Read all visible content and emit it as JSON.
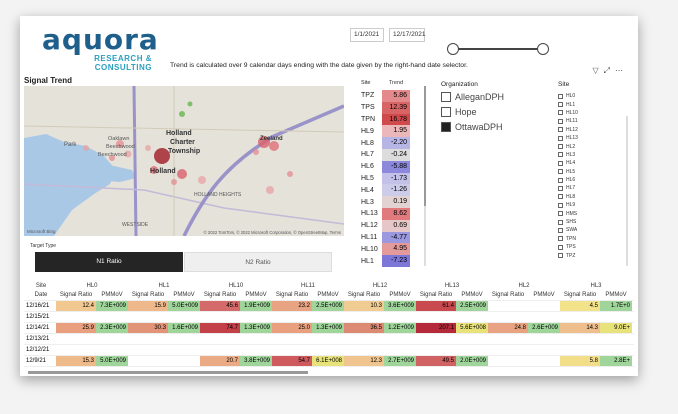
{
  "logo": {
    "main": "aquora",
    "sub1": "RESEARCH &",
    "sub2": "CONSULTING"
  },
  "date_range": {
    "start": "1/1/2021",
    "end": "12/17/2021"
  },
  "note": "Trend is calculated over 9 calendar days ending with the date given by the right-hand date selector.",
  "signal_trend_title": "Signal Trend",
  "map": {
    "labels": [
      {
        "text": "Holland"
      },
      {
        "text": "Charter"
      },
      {
        "text": "Township"
      },
      {
        "text": "Holland"
      },
      {
        "text": "Zeeland"
      }
    ],
    "small_labels": [
      "Park",
      "Oaklawn",
      "Beechwood",
      "Beechwood",
      "WESTSIDE",
      "HOLLAND HEIGHTS"
    ],
    "ms_logo": "Microsoft Bing",
    "credit": "© 2022 TomTom, © 2022 Microsoft Corporation, © OpenStreetMap, Terms"
  },
  "trend": {
    "header_site": "Site",
    "header_trend": "Trend",
    "rows": [
      {
        "site": "TPZ",
        "value": "5.86",
        "color": "#e48a8c"
      },
      {
        "site": "TPS",
        "value": "12.39",
        "color": "#d86466"
      },
      {
        "site": "TPN",
        "value": "16.78",
        "color": "#d04a4c"
      },
      {
        "site": "HL9",
        "value": "1.95",
        "color": "#ecb7b8"
      },
      {
        "site": "HL8",
        "value": "-2.20",
        "color": "#b7b4e6"
      },
      {
        "site": "HL7",
        "value": "-0.24",
        "color": "#dcdcdc"
      },
      {
        "site": "HL6",
        "value": "-5.88",
        "color": "#8c88dc"
      },
      {
        "site": "HL5",
        "value": "-1.73",
        "color": "#c3c1e8"
      },
      {
        "site": "HL4",
        "value": "-1.26",
        "color": "#cdcbea"
      },
      {
        "site": "HL3",
        "value": "0.19",
        "color": "#e2d2d2"
      },
      {
        "site": "HL13",
        "value": "8.62",
        "color": "#e07a7c"
      },
      {
        "site": "HL12",
        "value": "0.69",
        "color": "#e6c6c6"
      },
      {
        "site": "HL11",
        "value": "-4.77",
        "color": "#9c98e0"
      },
      {
        "site": "HL10",
        "value": "4.95",
        "color": "#e49a9b"
      },
      {
        "site": "HL1",
        "value": "-7.23",
        "color": "#7d78d8"
      }
    ]
  },
  "organization": {
    "title": "Organization",
    "items": [
      {
        "label": "AlleganDPH",
        "checked": false
      },
      {
        "label": "Hope",
        "checked": false
      },
      {
        "label": "OttawaDPH",
        "checked": true
      }
    ]
  },
  "site_filter": {
    "title": "Site",
    "items": [
      "HL0",
      "HL1",
      "HL10",
      "HL11",
      "HL12",
      "HL13",
      "HL2",
      "HL3",
      "HL4",
      "HL5",
      "HL6",
      "HL7",
      "HL8",
      "HL9",
      "HMS",
      "SHS",
      "SWA",
      "TPN",
      "TPS",
      "TPZ"
    ]
  },
  "target_type": {
    "title": "Target Type",
    "n1": "N1 Ratio",
    "n2": "N2 Ratio"
  },
  "table": {
    "site_label": "Site",
    "date_label": "Date",
    "sr_label": "Signal Ratio",
    "pm_label": "PMMoV",
    "groups": [
      "HL0",
      "HL1",
      "HL10",
      "HL11",
      "HL12",
      "HL13",
      "HL2",
      "HL3"
    ],
    "rows": [
      {
        "date": "12/16/21",
        "cells": [
          [
            "12.4",
            "#f0c890",
            "7.3E+009",
            "#9fd49a"
          ],
          [
            "15.9",
            "#eeb88a",
            "5.0E+009",
            "#9fd49a"
          ],
          [
            "45.6",
            "#d46a6a",
            "1.9E+009",
            "#9fd49a"
          ],
          [
            "23.2",
            "#e8a482",
            "2.5E+009",
            "#9fd49a"
          ],
          [
            "10.3",
            "#f0cc92",
            "3.6E+009",
            "#9fd49a"
          ],
          [
            "61.4",
            "#c84a4e",
            "2.5E+009",
            "#9fd49a"
          ],
          [
            "",
            "",
            "",
            ""
          ],
          [
            "4.5",
            "#f2e28a",
            "1.7E+0",
            "#9fd49a"
          ]
        ]
      },
      {
        "date": "12/15/21",
        "cells": [
          [
            "",
            "",
            "",
            ""
          ],
          [
            "",
            "",
            "",
            ""
          ],
          [
            "",
            "",
            "",
            ""
          ],
          [
            "",
            "",
            "",
            ""
          ],
          [
            "",
            "",
            "",
            ""
          ],
          [
            "",
            "",
            "",
            ""
          ],
          [
            "",
            "",
            "",
            ""
          ],
          [
            "",
            "",
            "",
            ""
          ]
        ]
      },
      {
        "date": "12/14/21",
        "cells": [
          [
            "25.9",
            "#e8a07e",
            "2.3E+009",
            "#9fd49a"
          ],
          [
            "30.3",
            "#e29478",
            "1.6E+009",
            "#9fd49a"
          ],
          [
            "74.7",
            "#c44048",
            "1.3E+009",
            "#9fd49a"
          ],
          [
            "25.0",
            "#e8a07e",
            "1.3E+009",
            "#9fd49a"
          ],
          [
            "36.5",
            "#dc8a74",
            "1.2E+009",
            "#9fd49a"
          ],
          [
            "207.1",
            "#b42a3a",
            "5.6E+008",
            "#e8e27a"
          ],
          [
            "24.8",
            "#e8a482",
            "2.6E+009",
            "#9fd49a"
          ],
          [
            "14.3",
            "#eebe8c",
            "9.0E+",
            "#e8e27a"
          ]
        ]
      },
      {
        "date": "12/13/21",
        "cells": [
          [
            "",
            "",
            "",
            ""
          ],
          [
            "",
            "",
            "",
            ""
          ],
          [
            "",
            "",
            "",
            ""
          ],
          [
            "",
            "",
            "",
            ""
          ],
          [
            "",
            "",
            "",
            ""
          ],
          [
            "",
            "",
            "",
            ""
          ],
          [
            "",
            "",
            "",
            ""
          ],
          [
            "",
            "",
            "",
            ""
          ]
        ]
      },
      {
        "date": "12/12/21",
        "cells": [
          [
            "",
            "",
            "",
            ""
          ],
          [
            "",
            "",
            "",
            ""
          ],
          [
            "",
            "",
            "",
            ""
          ],
          [
            "",
            "",
            "",
            ""
          ],
          [
            "",
            "",
            "",
            ""
          ],
          [
            "",
            "",
            "",
            ""
          ],
          [
            "",
            "",
            "",
            ""
          ],
          [
            "",
            "",
            "",
            ""
          ]
        ]
      },
      {
        "date": "12/9/21",
        "cells": [
          [
            "15.3",
            "#eeba8a",
            "5.0E+009",
            "#9fd49a"
          ],
          [
            "",
            "",
            "",
            ""
          ],
          [
            "20.7",
            "#eaaa84",
            "3.8E+009",
            "#9fd49a"
          ],
          [
            "54.7",
            "#ce5a5e",
            "6.1E+008",
            "#e8e27a"
          ],
          [
            "12.3",
            "#f0c48e",
            "2.7E+009",
            "#9fd49a"
          ],
          [
            "49.5",
            "#d06264",
            "2.0E+009",
            "#9fd49a"
          ],
          [
            "",
            "",
            "",
            ""
          ],
          [
            "5.8",
            "#f2de88",
            "2.8E+",
            "#9fd49a"
          ]
        ]
      }
    ]
  }
}
